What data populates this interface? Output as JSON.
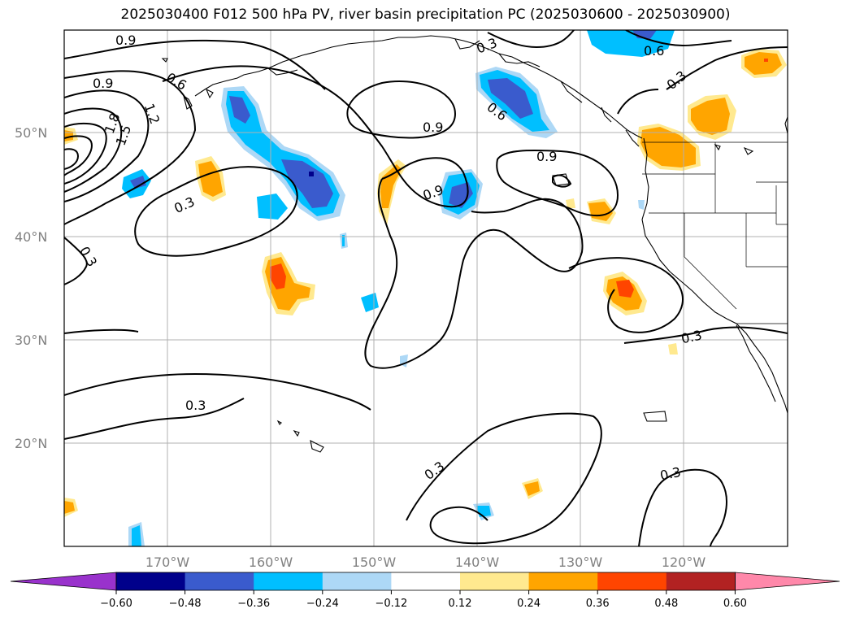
{
  "title": "2025030400 F012 500 hPa PV, river basin precipitation PC (2025030600 - 2025030900)",
  "map": {
    "lat_range": [
      10,
      60
    ],
    "lon_range": [
      -180,
      -110
    ],
    "lat_labels": [
      "50°N",
      "40°N",
      "30°N",
      "20°N"
    ],
    "lon_labels": [
      "170°W",
      "160°W",
      "150°W",
      "140°W",
      "130°W",
      "120°W"
    ],
    "contour_labels": [
      "0.9",
      "0.9",
      "0.6",
      "1.2",
      "1.8",
      "1.5",
      "0.3",
      "0.6",
      "0.6",
      "0.9",
      "0.9",
      "0.9",
      "0.3",
      "0.3",
      "0.3",
      "0.3",
      "0.3",
      "0.3",
      "0.3"
    ]
  },
  "colorbar": {
    "ticks": [
      "−0.60",
      "−0.48",
      "−0.36",
      "−0.24",
      "−0.12",
      "0.12",
      "0.24",
      "0.36",
      "0.48",
      "0.60"
    ],
    "colors": [
      "#9932cc",
      "#00008b",
      "#3a5bcd",
      "#00bfff",
      "#add8f6",
      "#ffffff",
      "#ffe98f",
      "#ffa500",
      "#ff4500",
      "#b22222",
      "#ff88aa"
    ]
  }
}
